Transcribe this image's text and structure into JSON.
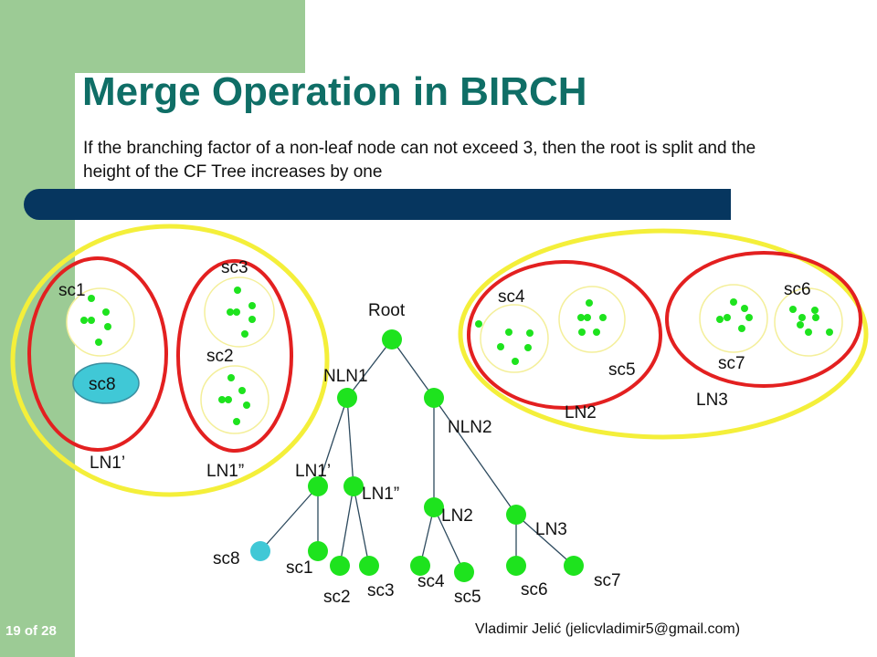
{
  "slide": {
    "title": "Merge Operation in BIRCH",
    "subtitle": "If the branching factor of a non-leaf node can not exceed 3, then the root is split and the height of the CF Tree increases by one",
    "page": "19 of 28",
    "author": "Vladimir Jelić (jelicvladimir5@gmail.com)"
  },
  "colors": {
    "accent_green": "#9ccb95",
    "title_teal": "#0f6e66",
    "bar_navy": "#06365f",
    "node_green": "#1ee31e",
    "leaf_cyan": "#40c8d6",
    "ring_red": "#e32020",
    "ring_yellow": "#f4ef3a"
  },
  "space": {
    "labels": {
      "sc1": "sc1",
      "sc2": "sc2",
      "sc3": "sc3",
      "sc8": "sc8",
      "ln1p": "LN1’",
      "ln1pp": "LN1”",
      "sc4": "sc4",
      "sc5": "sc5",
      "ln2": "LN2",
      "sc6": "sc6",
      "sc7": "sc7",
      "ln3": "LN3"
    }
  },
  "tree": {
    "root": "Root",
    "nln1": "NLN1",
    "nln2": "NLN2",
    "ln1p": "LN1’",
    "ln1pp": "LN1”",
    "ln2": "LN2",
    "ln3": "LN3",
    "leaves": {
      "sc8": "sc8",
      "sc1": "sc1",
      "sc2": "sc2",
      "sc3": "sc3",
      "sc4": "sc4",
      "sc5": "sc5",
      "sc6": "sc6",
      "sc7": "sc7"
    }
  }
}
